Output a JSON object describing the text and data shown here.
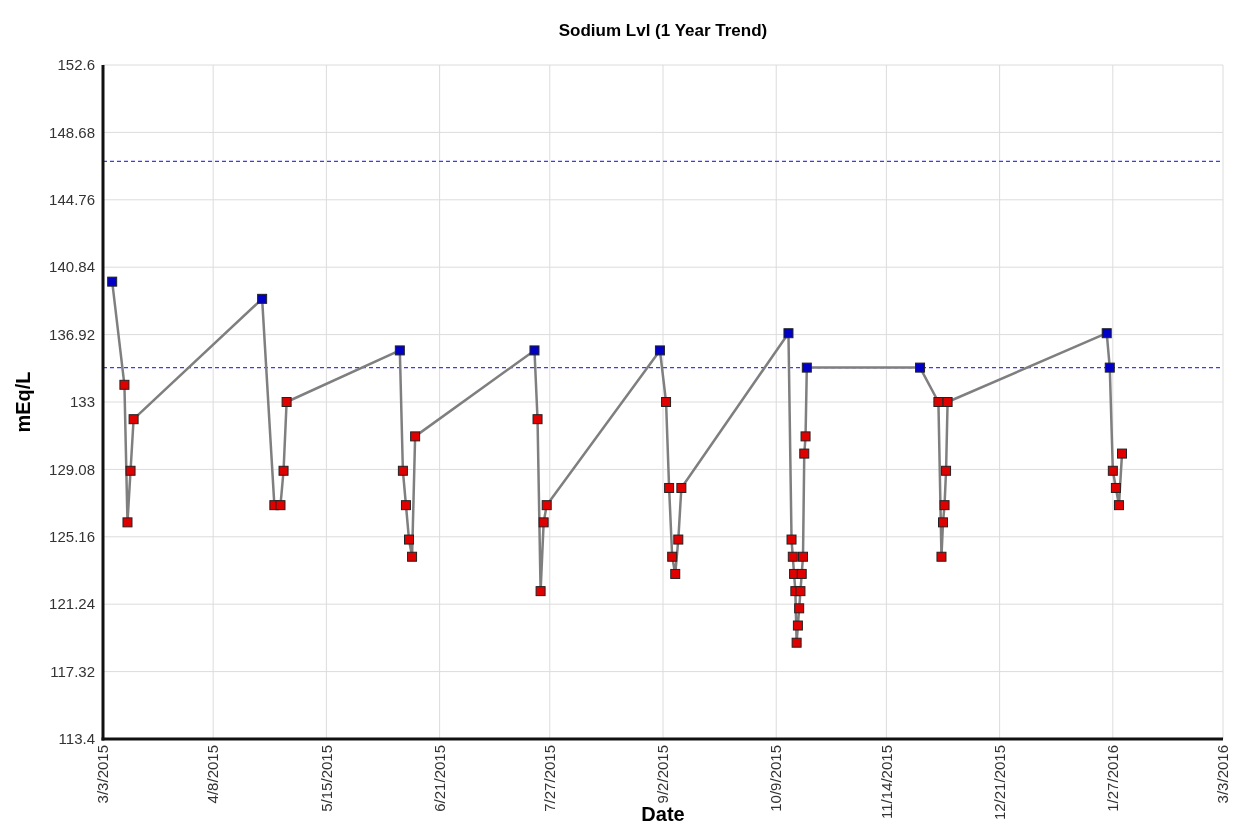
{
  "chart_data": {
    "type": "line",
    "title": "Sodium Lvl (1 Year Trend)",
    "xlabel": "Date",
    "ylabel": "mEq/L",
    "xlim": [
      "2015-03-03",
      "2016-03-03"
    ],
    "xticks": [
      {
        "value": "2015-03-03",
        "label": "3/3/2015"
      },
      {
        "value": "2015-04-08",
        "label": "4/8/2015"
      },
      {
        "value": "2015-05-15",
        "label": "5/15/2015"
      },
      {
        "value": "2015-06-21",
        "label": "6/21/2015"
      },
      {
        "value": "2015-07-27",
        "label": "7/27/2015"
      },
      {
        "value": "2015-09-02",
        "label": "9/2/2015"
      },
      {
        "value": "2015-10-09",
        "label": "10/9/2015"
      },
      {
        "value": "2015-11-14",
        "label": "11/14/2015"
      },
      {
        "value": "2015-12-21",
        "label": "12/21/2015"
      },
      {
        "value": "2016-01-27",
        "label": "1/27/2016"
      },
      {
        "value": "2016-03-03",
        "label": "3/3/2016"
      }
    ],
    "ylim": [
      113.4,
      152.6
    ],
    "yticks": [
      113.4,
      117.32,
      121.24,
      125.16,
      129.08,
      133,
      136.92,
      140.84,
      144.76,
      148.68,
      152.6
    ],
    "grid": true,
    "marker": "square",
    "line_style": "solid",
    "ref_lines": [
      {
        "axis": "y",
        "value": 147,
        "label": null,
        "color": "#3a3aff",
        "line_style": "dashed"
      },
      {
        "axis": "y",
        "value": 135,
        "label": null,
        "color": "#3a3aff",
        "line_style": "dashed"
      }
    ],
    "series": [
      {
        "color": "#7f7f7f",
        "x": [
          "2015-03-06",
          "2015-03-10",
          "2015-03-11",
          "2015-03-12",
          "2015-03-13",
          "2015-04-24",
          "2015-04-28",
          "2015-04-30",
          "2015-05-01",
          "2015-05-02",
          "2015-06-08",
          "2015-06-09",
          "2015-06-10",
          "2015-06-11",
          "2015-06-12",
          "2015-06-13",
          "2015-07-22",
          "2015-07-23",
          "2015-07-24",
          "2015-07-25",
          "2015-07-26",
          "2015-09-01",
          "2015-09-03",
          "2015-09-04",
          "2015-09-05",
          "2015-09-06",
          "2015-09-07",
          "2015-09-08",
          "2015-10-13",
          "2015-10-14T00:00",
          "2015-10-14T10:00",
          "2015-10-14T20:00",
          "2015-10-15T06:00",
          "2015-10-15T16:00",
          "2015-10-16T02:00",
          "2015-10-16T12:00",
          "2015-10-16T22:00",
          "2015-10-17T08:00",
          "2015-10-17T18:00",
          "2015-10-18T04:00",
          "2015-10-18T14:00",
          "2015-10-19",
          "2015-11-25",
          "2015-12-01",
          "2015-12-02",
          "2015-12-02T12:00",
          "2015-12-03",
          "2015-12-03T12:00",
          "2015-12-04",
          "2016-01-25",
          "2016-01-26",
          "2016-01-27",
          "2016-01-28",
          "2016-01-29",
          "2016-01-30"
        ],
        "values": [
          140,
          134,
          126,
          129,
          132,
          139,
          127,
          127,
          129,
          133,
          136,
          129,
          127,
          125,
          124,
          131,
          136,
          132,
          122,
          126,
          127,
          136,
          133,
          128,
          124,
          123,
          125,
          128,
          137,
          125,
          124,
          123,
          122,
          119,
          120,
          121,
          122,
          123,
          124,
          130,
          131,
          135,
          135,
          133,
          124,
          126,
          127,
          129,
          133,
          137,
          135,
          129,
          128,
          127,
          130
        ],
        "colors": [
          "#0000c8",
          "#e00000",
          "#e00000",
          "#e00000",
          "#e00000",
          "#0000c8",
          "#e00000",
          "#e00000",
          "#e00000",
          "#e00000",
          "#0000c8",
          "#e00000",
          "#e00000",
          "#e00000",
          "#e00000",
          "#e00000",
          "#0000c8",
          "#e00000",
          "#e00000",
          "#e00000",
          "#e00000",
          "#0000c8",
          "#e00000",
          "#e00000",
          "#e00000",
          "#e00000",
          "#e00000",
          "#e00000",
          "#0000c8",
          "#e00000",
          "#e00000",
          "#e00000",
          "#e00000",
          "#e00000",
          "#e00000",
          "#e00000",
          "#e00000",
          "#e00000",
          "#e00000",
          "#e00000",
          "#e00000",
          "#0000c8",
          "#0000c8",
          "#e00000",
          "#e00000",
          "#e00000",
          "#e00000",
          "#e00000",
          "#e00000",
          "#0000c8",
          "#0000c8",
          "#e00000",
          "#e00000",
          "#e00000",
          "#e00000"
        ]
      }
    ]
  }
}
